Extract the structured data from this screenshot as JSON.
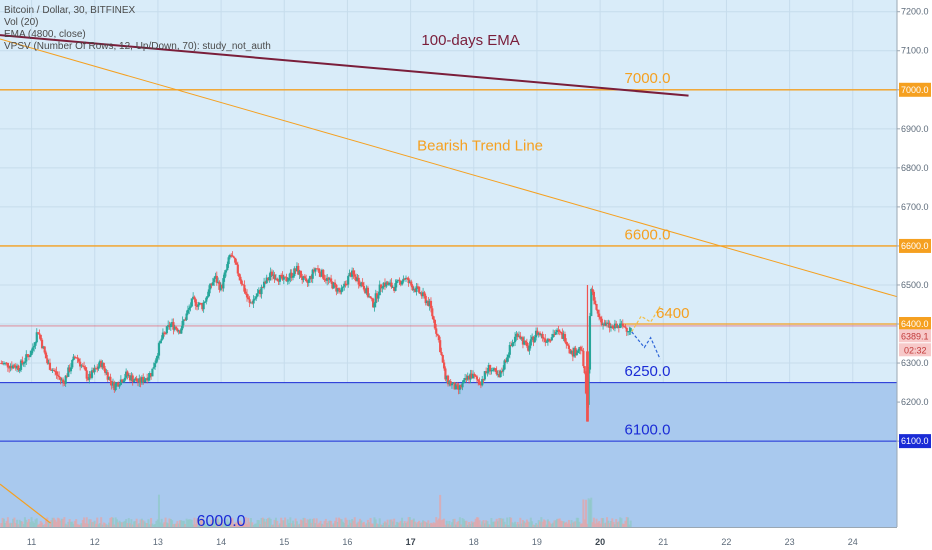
{
  "legend": {
    "symbol": "Bitcoin / Dollar, 30, BITFINEX",
    "vol": "Vol (20)",
    "ema": "EMA (4800, close)",
    "vpsv": "VPSV (Number Of Rows, 12, Up/Down, 70): study_not_auth"
  },
  "colors": {
    "chart_bg": "#d9ecf9",
    "support_zone": "#a9c9ee",
    "orange": "#f5a020",
    "blue": "#1a2bd6",
    "ema": "#7a1e3a",
    "up": "#26a69a",
    "down": "#ef5350",
    "price_line": "#e06070"
  },
  "chart_data": {
    "type": "candlestick",
    "y_axis": {
      "min": 5880,
      "max": 7230,
      "ticks": [
        6100.0,
        6200.0,
        6300.0,
        6400.0,
        6500.0,
        6600.0,
        6700.0,
        6800.0,
        6900.0,
        7000.0,
        7100.0,
        7200.0
      ],
      "tick_labels": [
        "6100.0",
        "6200.0",
        "6300.0",
        "6400.0",
        "6500.0",
        "6600.0",
        "6700.0",
        "6800.0",
        "6900.0",
        "7000.0",
        "7100.0",
        "7200.0"
      ]
    },
    "x_axis": {
      "min": 10.5,
      "max": 24.7,
      "ticks": [
        11,
        12,
        13,
        14,
        15,
        16,
        17,
        18,
        19,
        20,
        21,
        22,
        23,
        24
      ],
      "tick_labels": [
        "11",
        "12",
        "13",
        "14",
        "15",
        "16",
        "17",
        "18",
        "19",
        "20",
        "21",
        "22",
        "23",
        "24"
      ],
      "bold_ticks": [
        "17",
        "20"
      ]
    },
    "price_path": [
      [
        10.5,
        6300
      ],
      [
        10.8,
        6290
      ],
      [
        11.0,
        6330
      ],
      [
        11.1,
        6385
      ],
      [
        11.25,
        6300
      ],
      [
        11.5,
        6250
      ],
      [
        11.7,
        6320
      ],
      [
        11.9,
        6260
      ],
      [
        12.1,
        6300
      ],
      [
        12.3,
        6240
      ],
      [
        12.5,
        6270
      ],
      [
        12.7,
        6250
      ],
      [
        12.9,
        6275
      ],
      [
        13.05,
        6360
      ],
      [
        13.2,
        6400
      ],
      [
        13.35,
        6385
      ],
      [
        13.55,
        6460
      ],
      [
        13.7,
        6445
      ],
      [
        13.9,
        6520
      ],
      [
        14.0,
        6490
      ],
      [
        14.15,
        6580
      ],
      [
        14.3,
        6520
      ],
      [
        14.45,
        6450
      ],
      [
        14.6,
        6480
      ],
      [
        14.8,
        6530
      ],
      [
        15.0,
        6510
      ],
      [
        15.2,
        6540
      ],
      [
        15.35,
        6500
      ],
      [
        15.5,
        6545
      ],
      [
        15.7,
        6510
      ],
      [
        15.9,
        6480
      ],
      [
        16.05,
        6530
      ],
      [
        16.25,
        6500
      ],
      [
        16.4,
        6450
      ],
      [
        16.55,
        6505
      ],
      [
        16.75,
        6495
      ],
      [
        16.9,
        6520
      ],
      [
        17.0,
        6500
      ],
      [
        17.15,
        6480
      ],
      [
        17.3,
        6450
      ],
      [
        17.45,
        6355
      ],
      [
        17.55,
        6260
      ],
      [
        17.75,
        6230
      ],
      [
        17.95,
        6270
      ],
      [
        18.1,
        6250
      ],
      [
        18.25,
        6290
      ],
      [
        18.4,
        6260
      ],
      [
        18.55,
        6330
      ],
      [
        18.7,
        6380
      ],
      [
        18.85,
        6335
      ],
      [
        19.0,
        6380
      ],
      [
        19.15,
        6360
      ],
      [
        19.3,
        6380
      ],
      [
        19.45,
        6365
      ],
      [
        19.55,
        6325
      ],
      [
        19.7,
        6340
      ],
      [
        19.75,
        6275
      ],
      [
        19.8,
        6180
      ],
      [
        19.85,
        6490
      ],
      [
        19.95,
        6430
      ],
      [
        20.05,
        6400
      ],
      [
        20.2,
        6390
      ],
      [
        20.35,
        6395
      ],
      [
        20.5,
        6385
      ]
    ],
    "indicators": {
      "ema_100_days": {
        "from": [
          10.5,
          7140
        ],
        "to": [
          21.4,
          6985
        ]
      },
      "bearish_trend_line": {
        "from": [
          10.5,
          7130
        ],
        "to": [
          24.7,
          6470
        ]
      }
    },
    "levels": {
      "current_price_label": "6389.1",
      "current_price": 6389.1,
      "countdown_label": "02:32",
      "red_line": 6395
    },
    "projection": {
      "bullish": [
        [
          20.5,
          6380
        ],
        [
          20.65,
          6420
        ],
        [
          20.8,
          6405
        ],
        [
          20.95,
          6445
        ]
      ],
      "bearish": [
        [
          20.5,
          6380
        ],
        [
          20.7,
          6340
        ],
        [
          20.8,
          6365
        ],
        [
          20.95,
          6310
        ]
      ]
    },
    "annotations": [
      {
        "key": "ema_label",
        "text": "100-days EMA",
        "x": 17.95,
        "y": 7115,
        "color": "ema"
      },
      {
        "key": "trend_label",
        "text": "Bearish Trend Line",
        "x": 18.1,
        "y": 6845,
        "color": "orange"
      },
      {
        "key": "r7000_label",
        "text": "7000.0",
        "x": 20.75,
        "y": 7017,
        "color": "orange"
      },
      {
        "key": "r6600_label",
        "text": "6600.0",
        "x": 20.75,
        "y": 6617,
        "color": "orange"
      },
      {
        "key": "r6400_label",
        "text": "6400",
        "x": 21.15,
        "y": 6415,
        "color": "orange"
      },
      {
        "key": "s6250_label",
        "text": "6250.0",
        "x": 20.75,
        "y": 6267,
        "color": "blue"
      },
      {
        "key": "s6100_label",
        "text": "6100.0",
        "x": 20.75,
        "y": 6117,
        "color": "blue"
      },
      {
        "key": "s6000_label",
        "text": "6000.0",
        "x": 14.0,
        "y": 5882,
        "color": "blue"
      }
    ]
  }
}
